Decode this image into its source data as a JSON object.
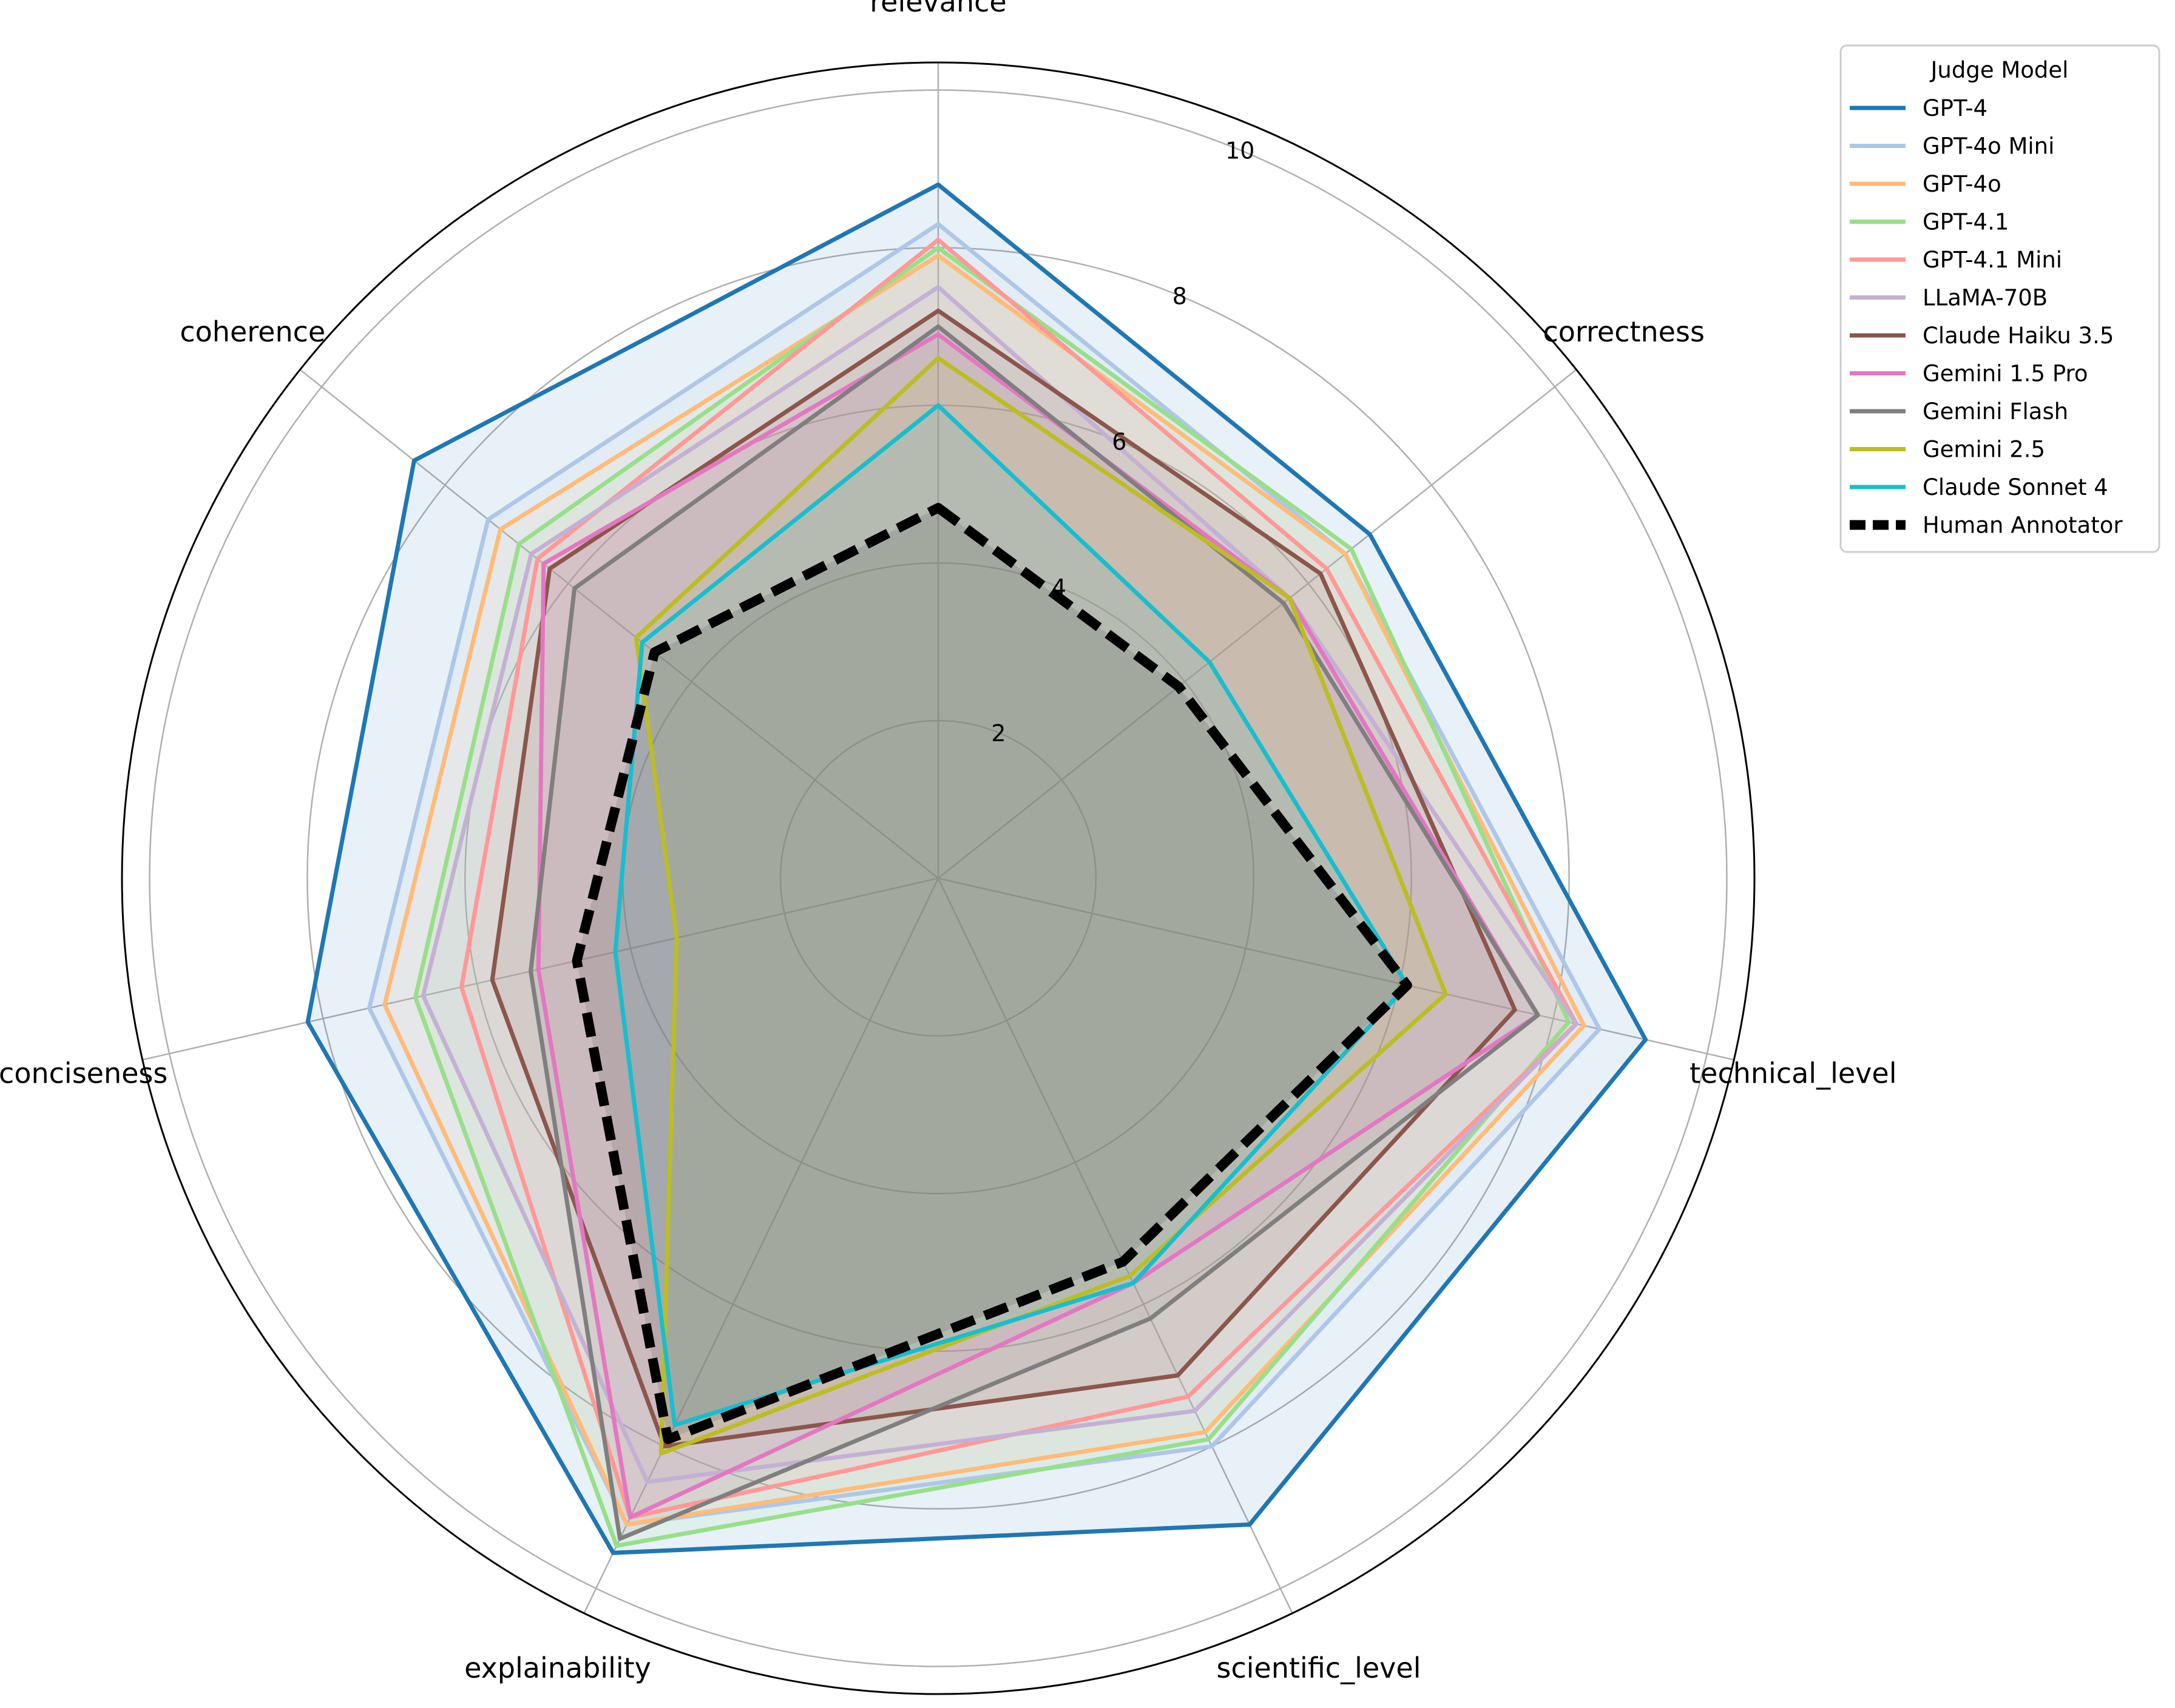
{
  "chart_data": {
    "type": "radar",
    "title": "",
    "axes": [
      "relevance",
      "correctness",
      "technical_level",
      "scientific_level",
      "explainability",
      "conciseness",
      "coherence"
    ],
    "rlim": [
      0,
      10.35
    ],
    "rticks": [
      2,
      4,
      6,
      8,
      10
    ],
    "rtick_labels": [
      "2",
      "4",
      "6",
      "8",
      "10"
    ],
    "legend": {
      "title": "Judge Model",
      "placement": "outside-top-right"
    },
    "series": [
      {
        "name": "GPT-4",
        "color": "#1f77b4",
        "fill": true,
        "dashed": false,
        "values": [
          8.8,
          7.0,
          9.2,
          9.1,
          9.5,
          8.2,
          8.5
        ]
      },
      {
        "name": "GPT-4o Mini",
        "color": "#aec7e8",
        "fill": true,
        "dashed": false,
        "values": [
          8.3,
          6.6,
          8.6,
          8.0,
          9.1,
          7.4,
          7.3
        ]
      },
      {
        "name": "GPT-4o",
        "color": "#ffbb78",
        "fill": true,
        "dashed": false,
        "values": [
          7.9,
          6.6,
          8.4,
          7.8,
          9.1,
          7.2,
          7.1
        ]
      },
      {
        "name": "GPT-4.1",
        "color": "#98df8a",
        "fill": true,
        "dashed": false,
        "values": [
          8.0,
          6.7,
          8.2,
          7.9,
          9.4,
          6.8,
          6.8
        ]
      },
      {
        "name": "GPT-4.1 Mini",
        "color": "#ff9896",
        "fill": true,
        "dashed": false,
        "values": [
          8.1,
          6.3,
          8.3,
          7.3,
          9.0,
          6.2,
          6.5
        ]
      },
      {
        "name": "LLaMA-70B",
        "color": "#c5b0d5",
        "fill": true,
        "dashed": false,
        "values": [
          7.5,
          5.7,
          8.3,
          7.5,
          8.5,
          6.7,
          6.6
        ]
      },
      {
        "name": "Claude Haiku 3.5",
        "color": "#8c564b",
        "fill": true,
        "dashed": false,
        "values": [
          7.2,
          6.2,
          7.5,
          7.0,
          8.0,
          5.8,
          6.3
        ]
      },
      {
        "name": "Gemini 1.5 Pro",
        "color": "#e377c2",
        "fill": true,
        "dashed": false,
        "values": [
          6.9,
          5.7,
          7.8,
          5.7,
          9.0,
          5.2,
          6.4
        ]
      },
      {
        "name": "Gemini Flash",
        "color": "#7f7f7f",
        "fill": true,
        "dashed": false,
        "values": [
          7.0,
          5.6,
          7.8,
          6.2,
          9.3,
          5.3,
          5.9
        ]
      },
      {
        "name": "Gemini 2.5",
        "color": "#bcbd22",
        "fill": true,
        "dashed": false,
        "values": [
          6.6,
          5.7,
          6.6,
          5.6,
          8.1,
          3.4,
          4.9
        ]
      },
      {
        "name": "Claude Sonnet 4",
        "color": "#17becf",
        "fill": true,
        "dashed": false,
        "values": [
          6.0,
          4.4,
          6.1,
          5.7,
          7.7,
          4.2,
          4.8
        ]
      },
      {
        "name": "Human Annotator",
        "color": "#000000",
        "fill": true,
        "dashed": true,
        "values": [
          4.7,
          3.9,
          6.1,
          5.4,
          7.9,
          4.7,
          4.6
        ]
      }
    ]
  }
}
